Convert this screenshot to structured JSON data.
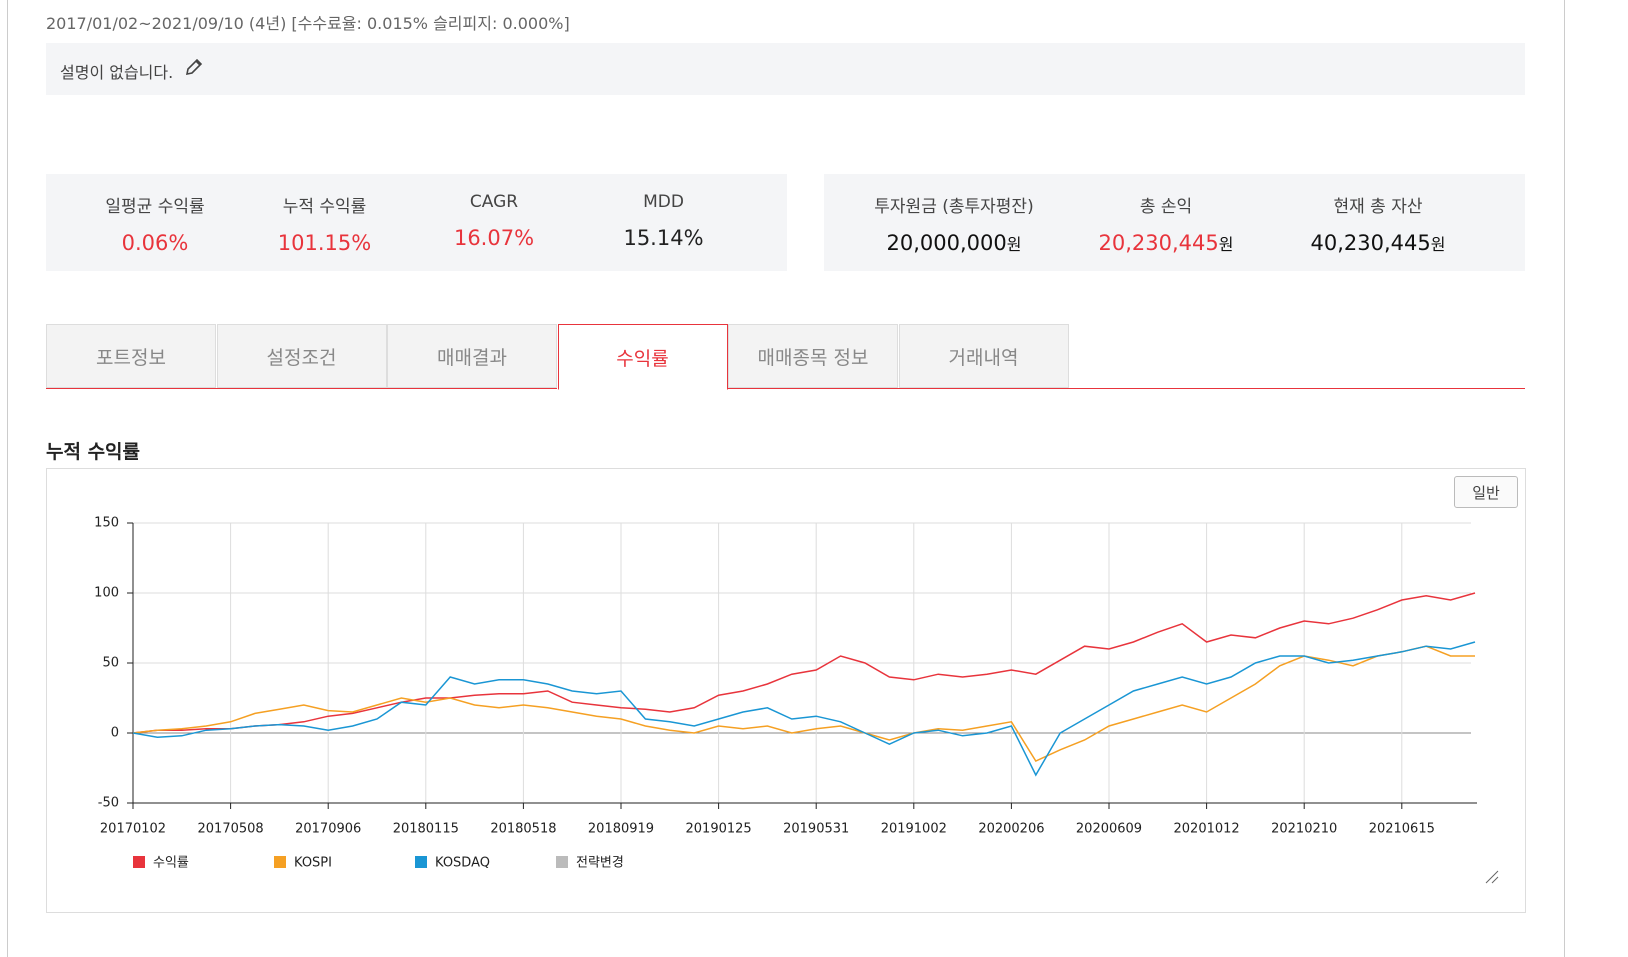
{
  "header": {
    "period": "2017/01/02~2021/09/10 (4년) [수수료율: 0.015% 슬리피지: 0.000%]",
    "description": "설명이 없습니다."
  },
  "stats_left": [
    {
      "label": "일평균 수익률",
      "value": "0.06%",
      "color": "#e8343c"
    },
    {
      "label": "누적 수익률",
      "value": "101.15%",
      "color": "#e8343c"
    },
    {
      "label": "CAGR",
      "value": "16.07%",
      "color": "#e8343c"
    },
    {
      "label": "MDD",
      "value": "15.14%",
      "color": "#222222"
    }
  ],
  "stats_right": [
    {
      "label": "투자원금 (총투자평잔)",
      "value": "20,000,000",
      "unit": "원",
      "color": "#111111"
    },
    {
      "label": "총 손익",
      "value": "20,230,445",
      "unit": "원",
      "color": "#e8343c"
    },
    {
      "label": "현재 총 자산",
      "value": "40,230,445",
      "unit": "원",
      "color": "#111111"
    }
  ],
  "tabs": {
    "items": [
      "포트정보",
      "설정조건",
      "매매결과",
      "수익률",
      "매매종목 정보",
      "거래내역"
    ],
    "active": 3
  },
  "section_title": "누적 수익률",
  "mode_button": "일반",
  "chart_data": {
    "type": "line",
    "categories": [
      "20170102",
      null,
      null,
      null,
      "20170508",
      null,
      null,
      null,
      "20170906",
      null,
      null,
      null,
      "20180115",
      null,
      null,
      null,
      "20180518",
      null,
      null,
      null,
      "20180919",
      null,
      null,
      null,
      "20190125",
      null,
      null,
      null,
      "20190531",
      null,
      null,
      null,
      "20191002",
      null,
      null,
      null,
      "20200206",
      null,
      null,
      null,
      "20200609",
      null,
      null,
      null,
      "20201012",
      null,
      null,
      null,
      "20210210",
      null,
      null,
      null,
      "20210615",
      null,
      null,
      null
    ],
    "series": [
      {
        "name": "수익률",
        "color": "#e8343c",
        "values": [
          0,
          2,
          2,
          3,
          3,
          5,
          6,
          8,
          12,
          14,
          18,
          22,
          25,
          25,
          27,
          28,
          28,
          30,
          22,
          20,
          18,
          17,
          15,
          18,
          27,
          30,
          35,
          42,
          45,
          55,
          50,
          40,
          38,
          42,
          40,
          42,
          45,
          42,
          52,
          62,
          60,
          65,
          72,
          78,
          65,
          70,
          68,
          75,
          80,
          78,
          82,
          88,
          95,
          98,
          95,
          100
        ]
      },
      {
        "name": "KOSPI",
        "color": "#f5a023",
        "values": [
          0,
          2,
          3,
          5,
          8,
          14,
          17,
          20,
          16,
          15,
          20,
          25,
          22,
          25,
          20,
          18,
          20,
          18,
          15,
          12,
          10,
          5,
          2,
          0,
          5,
          3,
          5,
          0,
          3,
          5,
          0,
          -5,
          0,
          3,
          2,
          5,
          8,
          -20,
          -12,
          -5,
          5,
          10,
          15,
          20,
          15,
          25,
          35,
          48,
          55,
          52,
          48,
          55,
          58,
          62,
          55,
          55
        ]
      },
      {
        "name": "KOSDAQ",
        "color": "#1a96d4",
        "values": [
          0,
          -3,
          -2,
          2,
          3,
          5,
          6,
          5,
          2,
          5,
          10,
          22,
          20,
          40,
          35,
          38,
          38,
          35,
          30,
          28,
          30,
          10,
          8,
          5,
          10,
          15,
          18,
          10,
          12,
          8,
          0,
          -8,
          0,
          2,
          -2,
          0,
          5,
          -30,
          0,
          10,
          20,
          30,
          35,
          40,
          35,
          40,
          50,
          55,
          55,
          50,
          52,
          55,
          58,
          62,
          60,
          65
        ]
      }
    ],
    "legend_extra": {
      "name": "전략변경",
      "color": "#bbbbbb"
    },
    "ylim": [
      -50,
      150
    ],
    "yticks": [
      -50,
      0,
      50,
      100,
      150
    ],
    "grid": true
  }
}
